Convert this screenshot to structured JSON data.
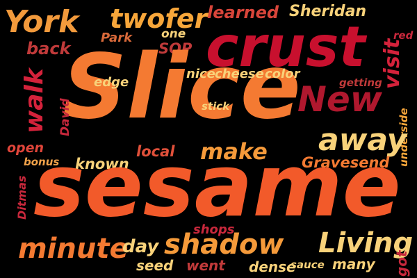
{
  "words": [
    {
      "id": "york",
      "text": "York",
      "color": "#f29a3c",
      "vertical": false
    },
    {
      "id": "twofer",
      "text": "twofer",
      "color": "#f7a63a",
      "vertical": false
    },
    {
      "id": "learned",
      "text": "learned",
      "color": "#d8453a",
      "vertical": false
    },
    {
      "id": "sheridan",
      "text": "Sheridan",
      "color": "#f8d27a",
      "vertical": false
    },
    {
      "id": "crust",
      "text": "crust",
      "color": "#c8102e",
      "vertical": false
    },
    {
      "id": "red",
      "text": "red",
      "color": "#c8283c",
      "vertical": false
    },
    {
      "id": "back",
      "text": "back",
      "color": "#c03a3a",
      "vertical": false
    },
    {
      "id": "park",
      "text": "Park",
      "color": "#d8693a",
      "vertical": false
    },
    {
      "id": "one",
      "text": "one",
      "color": "#f8d27a",
      "vertical": false
    },
    {
      "id": "sop",
      "text": "SOP",
      "color": "#c03a3a",
      "vertical": false
    },
    {
      "id": "visit",
      "text": "visit",
      "color": "#d4223b",
      "vertical": true
    },
    {
      "id": "slice",
      "text": "Slice",
      "color": "#f47a32",
      "vertical": false
    },
    {
      "id": "edge",
      "text": "edge",
      "color": "#f8d27a",
      "vertical": false
    },
    {
      "id": "nice",
      "text": "nice",
      "color": "#f8d27a",
      "vertical": false
    },
    {
      "id": "cheese",
      "text": "cheese",
      "color": "#f8d27a",
      "vertical": false
    },
    {
      "id": "color",
      "text": "color",
      "color": "#f8d27a",
      "vertical": false
    },
    {
      "id": "getting",
      "text": "getting",
      "color": "#c03a3a",
      "vertical": false
    },
    {
      "id": "new",
      "text": "New",
      "color": "#b0182e",
      "vertical": false
    },
    {
      "id": "walk",
      "text": "walk",
      "color": "#d4223b",
      "vertical": true
    },
    {
      "id": "david",
      "text": "David",
      "color": "#c8283c",
      "vertical": true
    },
    {
      "id": "stick",
      "text": "stick",
      "color": "#f8d27a",
      "vertical": false
    },
    {
      "id": "underside",
      "text": "underside",
      "color": "#f7a63a",
      "vertical": true
    },
    {
      "id": "away",
      "text": "away",
      "color": "#f8d27a",
      "vertical": false
    },
    {
      "id": "make",
      "text": "make",
      "color": "#f59a3a",
      "vertical": false
    },
    {
      "id": "open",
      "text": "open",
      "color": "#e0453a",
      "vertical": false
    },
    {
      "id": "local",
      "text": "local",
      "color": "#e0503a",
      "vertical": false
    },
    {
      "id": "bonus",
      "text": "bonus",
      "color": "#f0a24a",
      "vertical": false
    },
    {
      "id": "known",
      "text": "known",
      "color": "#f8d27a",
      "vertical": false
    },
    {
      "id": "gravesend",
      "text": "Gravesend",
      "color": "#f47a32",
      "vertical": false
    },
    {
      "id": "ditmas",
      "text": "Ditmas",
      "color": "#c8283c",
      "vertical": true
    },
    {
      "id": "sesame",
      "text": "sesame",
      "color": "#f25a2a",
      "vertical": false
    },
    {
      "id": "shops",
      "text": "shops",
      "color": "#c8283c",
      "vertical": false
    },
    {
      "id": "minute",
      "text": "minute",
      "color": "#f47a32",
      "vertical": false
    },
    {
      "id": "day",
      "text": "day",
      "color": "#f8d27a",
      "vertical": false
    },
    {
      "id": "shadow",
      "text": "shadow",
      "color": "#f59a3a",
      "vertical": false
    },
    {
      "id": "living",
      "text": "Living",
      "color": "#f8d27a",
      "vertical": false
    },
    {
      "id": "got",
      "text": "got",
      "color": "#c8283c",
      "vertical": true
    },
    {
      "id": "seed",
      "text": "seed",
      "color": "#f8d27a",
      "vertical": false
    },
    {
      "id": "went",
      "text": "went",
      "color": "#c03a3a",
      "vertical": false
    },
    {
      "id": "dense",
      "text": "dense",
      "color": "#f8d27a",
      "vertical": false
    },
    {
      "id": "sauce",
      "text": "sauce",
      "color": "#f8d27a",
      "vertical": false
    },
    {
      "id": "many",
      "text": "many",
      "color": "#f8d27a",
      "vertical": false
    }
  ]
}
